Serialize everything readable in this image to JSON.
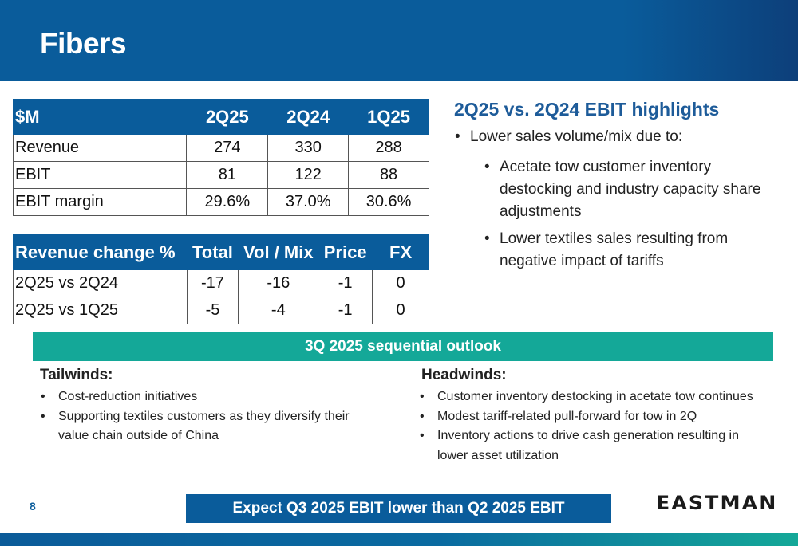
{
  "header": {
    "title": "Fibers"
  },
  "financials": {
    "headers": [
      "$M",
      "2Q25",
      "2Q24",
      "1Q25"
    ],
    "rows": [
      [
        "Revenue",
        "274",
        "330",
        "288"
      ],
      [
        "EBIT",
        "81",
        "122",
        "88"
      ],
      [
        "EBIT margin",
        "29.6%",
        "37.0%",
        "30.6%"
      ]
    ]
  },
  "revenue_change": {
    "headers": [
      "Revenue change %",
      "Total",
      "Vol / Mix",
      "Price",
      "FX"
    ],
    "rows": [
      [
        "2Q25 vs 2Q24",
        "-17",
        "-16",
        "-1",
        "0"
      ],
      [
        "2Q25 vs 1Q25",
        "-5",
        "-4",
        "-1",
        "0"
      ]
    ]
  },
  "highlights": {
    "title": "2Q25 vs. 2Q24 EBIT highlights",
    "main": "Lower sales volume/mix due to:",
    "sub": [
      "Acetate tow customer inventory destocking and industry capacity share adjustments",
      "Lower textiles sales resulting from negative impact of tariffs"
    ]
  },
  "outlook": {
    "title": "3Q 2025 sequential outlook",
    "tailwinds_label": "Tailwinds:",
    "tailwinds": [
      "Cost-reduction initiatives",
      "Supporting textiles customers as they diversify their value chain outside of China"
    ],
    "headwinds_label": "Headwinds:",
    "headwinds": [
      "Customer inventory destocking in acetate tow continues",
      "Modest tariff-related pull-forward for tow in 2Q",
      "Inventory actions to drive cash generation resulting in lower asset utilization"
    ]
  },
  "footer": {
    "page_number": "8",
    "expectation": "Expect Q3 2025 EBIT lower than Q2 2025 EBIT",
    "logo": "EASTMAN"
  },
  "colors": {
    "primary_blue": "#0a5c9b",
    "teal": "#14a898",
    "highlight_title": "#1d5b99"
  }
}
